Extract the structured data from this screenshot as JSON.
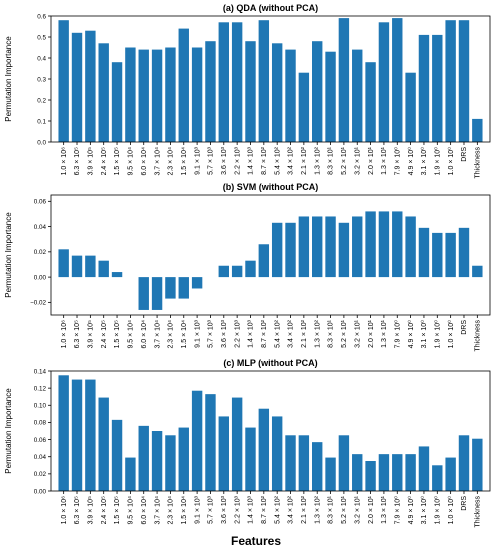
{
  "figure": {
    "xlabel": "Features",
    "bar_color": "#1f77b4",
    "categories": [
      "1.0 × 10⁶",
      "6.3 × 10⁵",
      "3.9 × 10⁵",
      "2.4 × 10⁵",
      "1.5 × 10⁵",
      "9.5 × 10⁴",
      "6.0 × 10⁴",
      "3.7 × 10⁴",
      "2.3 × 10⁴",
      "1.5 × 10⁴",
      "9.1 × 10³",
      "5.7 × 10³",
      "3.6 × 10³",
      "2.2 × 10³",
      "1.4 × 10³",
      "8.7 × 10²",
      "5.4 × 10²",
      "3.4 × 10²",
      "2.1 × 10²",
      "1.3 × 10²",
      "8.3 × 10¹",
      "5.2 × 10¹",
      "3.2 × 10¹",
      "2.0 × 10¹",
      "1.3 × 10¹",
      "7.9 × 10⁰",
      "4.9 × 10⁰",
      "3.1 × 10⁰",
      "1.9 × 10⁰",
      "1.0 × 10⁰",
      "DRS",
      "Thickness"
    ]
  },
  "chart_data": [
    {
      "type": "bar",
      "title": "(a) QDA (without PCA)",
      "ylabel": "Permutation Importance",
      "ylim": [
        0,
        0.6
      ],
      "yticks": [
        0.0,
        0.1,
        0.2,
        0.3,
        0.4,
        0.5,
        0.6
      ],
      "ytick_labels": [
        "0.0",
        "0.1",
        "0.2",
        "0.3",
        "0.4",
        "0.5",
        "0.6"
      ],
      "grid": false,
      "values": [
        0.58,
        0.52,
        0.53,
        0.47,
        0.38,
        0.45,
        0.44,
        0.44,
        0.45,
        0.54,
        0.45,
        0.48,
        0.57,
        0.57,
        0.48,
        0.58,
        0.47,
        0.44,
        0.33,
        0.48,
        0.43,
        0.59,
        0.44,
        0.38,
        0.57,
        0.59,
        0.33,
        0.51,
        0.51,
        0.58,
        0.58,
        0.11
      ]
    },
    {
      "type": "bar",
      "title": "(b) SVM (without PCA)",
      "ylabel": "Permutation Importance",
      "ylim": [
        -0.03,
        0.065
      ],
      "yticks": [
        -0.02,
        0.0,
        0.02,
        0.04,
        0.06
      ],
      "ytick_labels": [
        "−0.02",
        "0.00",
        "0.02",
        "0.04",
        "0.06"
      ],
      "grid": false,
      "values": [
        0.022,
        0.017,
        0.017,
        0.013,
        0.004,
        0.0,
        -0.026,
        -0.026,
        -0.017,
        -0.017,
        -0.009,
        0.0,
        0.009,
        0.009,
        0.013,
        0.026,
        0.043,
        0.043,
        0.048,
        0.048,
        0.048,
        0.043,
        0.048,
        0.052,
        0.052,
        0.052,
        0.048,
        0.039,
        0.035,
        0.035,
        0.039,
        0.009
      ]
    },
    {
      "type": "bar",
      "title": "(c) MLP (without PCA)",
      "ylabel": "Permutation Importance",
      "ylim": [
        0,
        0.14
      ],
      "yticks": [
        0.0,
        0.02,
        0.04,
        0.06,
        0.08,
        0.1,
        0.12,
        0.14
      ],
      "ytick_labels": [
        "0.00",
        "0.02",
        "0.04",
        "0.06",
        "0.08",
        "0.10",
        "0.12",
        "0.14"
      ],
      "grid": false,
      "values": [
        0.135,
        0.13,
        0.13,
        0.109,
        0.083,
        0.039,
        0.076,
        0.07,
        0.065,
        0.074,
        0.117,
        0.113,
        0.087,
        0.109,
        0.074,
        0.096,
        0.087,
        0.065,
        0.065,
        0.057,
        0.039,
        0.065,
        0.043,
        0.035,
        0.043,
        0.043,
        0.043,
        0.052,
        0.03,
        0.039,
        0.065,
        0.061
      ]
    }
  ]
}
